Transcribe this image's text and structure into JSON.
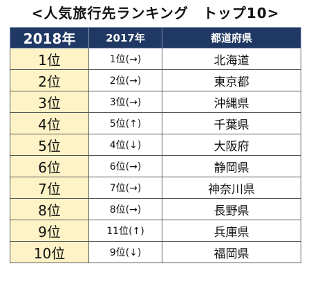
{
  "title": "<人気旅行先ランキング　トップ10>",
  "headers": {
    "year2018": "2018年",
    "year2017": "2017年",
    "prefecture": "都道府県"
  },
  "rows": [
    {
      "rank2018": "1位",
      "rank2017": "1位(→)",
      "prefecture": "北海道"
    },
    {
      "rank2018": "2位",
      "rank2017": "2位(→)",
      "prefecture": "東京都"
    },
    {
      "rank2018": "3位",
      "rank2017": "3位(→)",
      "prefecture": "沖縄県"
    },
    {
      "rank2018": "4位",
      "rank2017": "5位(↑)",
      "prefecture": "千葉県"
    },
    {
      "rank2018": "5位",
      "rank2017": "4位(↓)",
      "prefecture": "大阪府"
    },
    {
      "rank2018": "6位",
      "rank2017": "6位(→)",
      "prefecture": "静岡県"
    },
    {
      "rank2018": "7位",
      "rank2017": "7位(→)",
      "prefecture": "神奈川県"
    },
    {
      "rank2018": "8位",
      "rank2017": "8位(→)",
      "prefecture": "長野県"
    },
    {
      "rank2018": "9位",
      "rank2017": "11位(↑)",
      "prefecture": "兵庫県"
    },
    {
      "rank2018": "10位",
      "rank2017": "9位(↓)",
      "prefecture": "福岡県"
    }
  ],
  "colors": {
    "header_bg": "#1f3864",
    "rank_cell_bg": "#fdf3c6"
  }
}
